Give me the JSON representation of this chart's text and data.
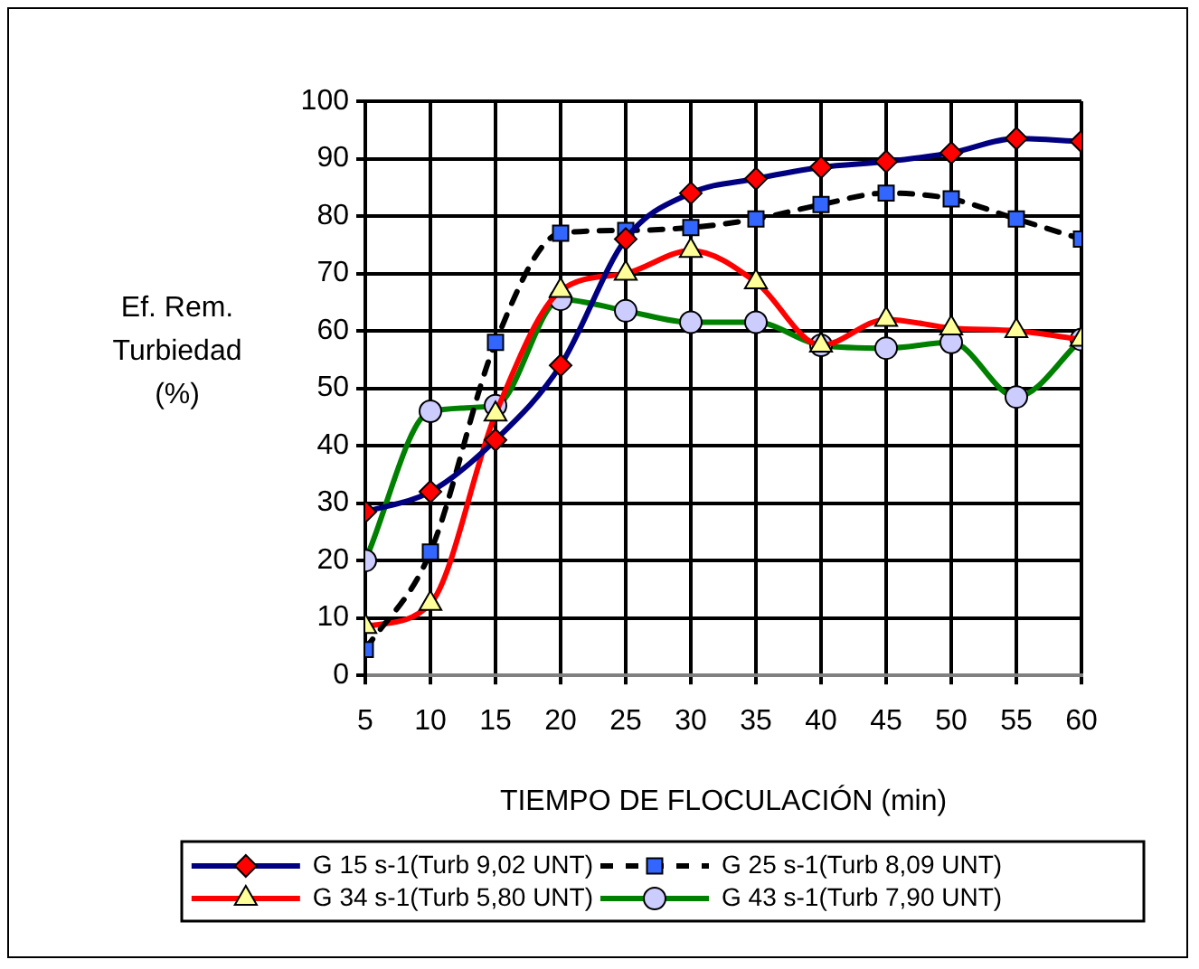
{
  "chart_data": {
    "type": "line",
    "xlabel": "TIEMPO DE FLOCULACIÓN (min)",
    "ylabel": "Ef. Rem.\nTurbiedad\n(%)",
    "x": [
      5,
      10,
      15,
      20,
      25,
      30,
      35,
      40,
      45,
      50,
      55,
      60
    ],
    "xlim": [
      5,
      60
    ],
    "xticks": [
      5,
      10,
      15,
      20,
      25,
      30,
      35,
      40,
      45,
      50,
      55,
      60
    ],
    "ylim": [
      0,
      100
    ],
    "yticks": [
      0,
      10,
      20,
      30,
      40,
      50,
      60,
      70,
      80,
      90,
      100
    ],
    "grid": true,
    "legend": "bottom",
    "series": [
      {
        "name": "G 15 s-1(Turb 9,02 UNT)",
        "color": "#000080",
        "marker": "diamond",
        "line_style": "solid",
        "colors": [
          "#ff0000",
          "#ff0000",
          "#ff0000",
          "#ff0000",
          "#ff0000",
          "#ff0000",
          "#ff0000",
          "#ff0000",
          "#ff0000",
          "#ff0000",
          "#ff0000",
          "#ff0000"
        ],
        "values": [
          28.5,
          32,
          41,
          54,
          76,
          84,
          86.5,
          88.5,
          89.5,
          91,
          93.5,
          93
        ]
      },
      {
        "name": "G 25 s-1(Turb 8,09 UNT)",
        "color": "#000000",
        "marker": "square",
        "line_style": "dashed",
        "colors": [
          "#3366ff",
          "#3366ff",
          "#3366ff",
          "#3366ff",
          "#3366ff",
          "#3366ff",
          "#3366ff",
          "#3366ff",
          "#3366ff",
          "#3366ff",
          "#3366ff",
          "#3366ff"
        ],
        "values": [
          4.5,
          21.5,
          58,
          77,
          77.5,
          78,
          79.5,
          82,
          84,
          83,
          79.5,
          76
        ]
      },
      {
        "name": "G 34 s-1(Turb 5,80 UNT)",
        "color": "#ff0000",
        "marker": "triangle",
        "line_style": "solid",
        "colors": [
          "#ffff99",
          "#ffff99",
          "#ffff99",
          "#ffff99",
          "#ffff99",
          "#ffff99",
          "#ffff99",
          "#ffff99",
          "#ffff99",
          "#ffff99",
          "#ffff99",
          "#ffff99"
        ],
        "values": [
          8.5,
          12.5,
          45.5,
          67,
          70,
          74,
          68.5,
          57.5,
          62,
          60.5,
          60,
          58.5
        ]
      },
      {
        "name": "G 43 s-1(Turb 7,90 UNT)",
        "color": "#008000",
        "marker": "circle",
        "line_style": "solid",
        "colors": [
          "#ccccff",
          "#ccccff",
          "#ccccff",
          "#ccccff",
          "#ccccff",
          "#ccccff",
          "#ccccff",
          "#ccccff",
          "#ccccff",
          "#ccccff",
          "#ccccff",
          "#ccccff"
        ],
        "values": [
          20,
          46,
          47,
          65.5,
          63.5,
          61.5,
          61.5,
          57.5,
          57,
          58,
          48.5,
          58.5
        ]
      }
    ]
  }
}
